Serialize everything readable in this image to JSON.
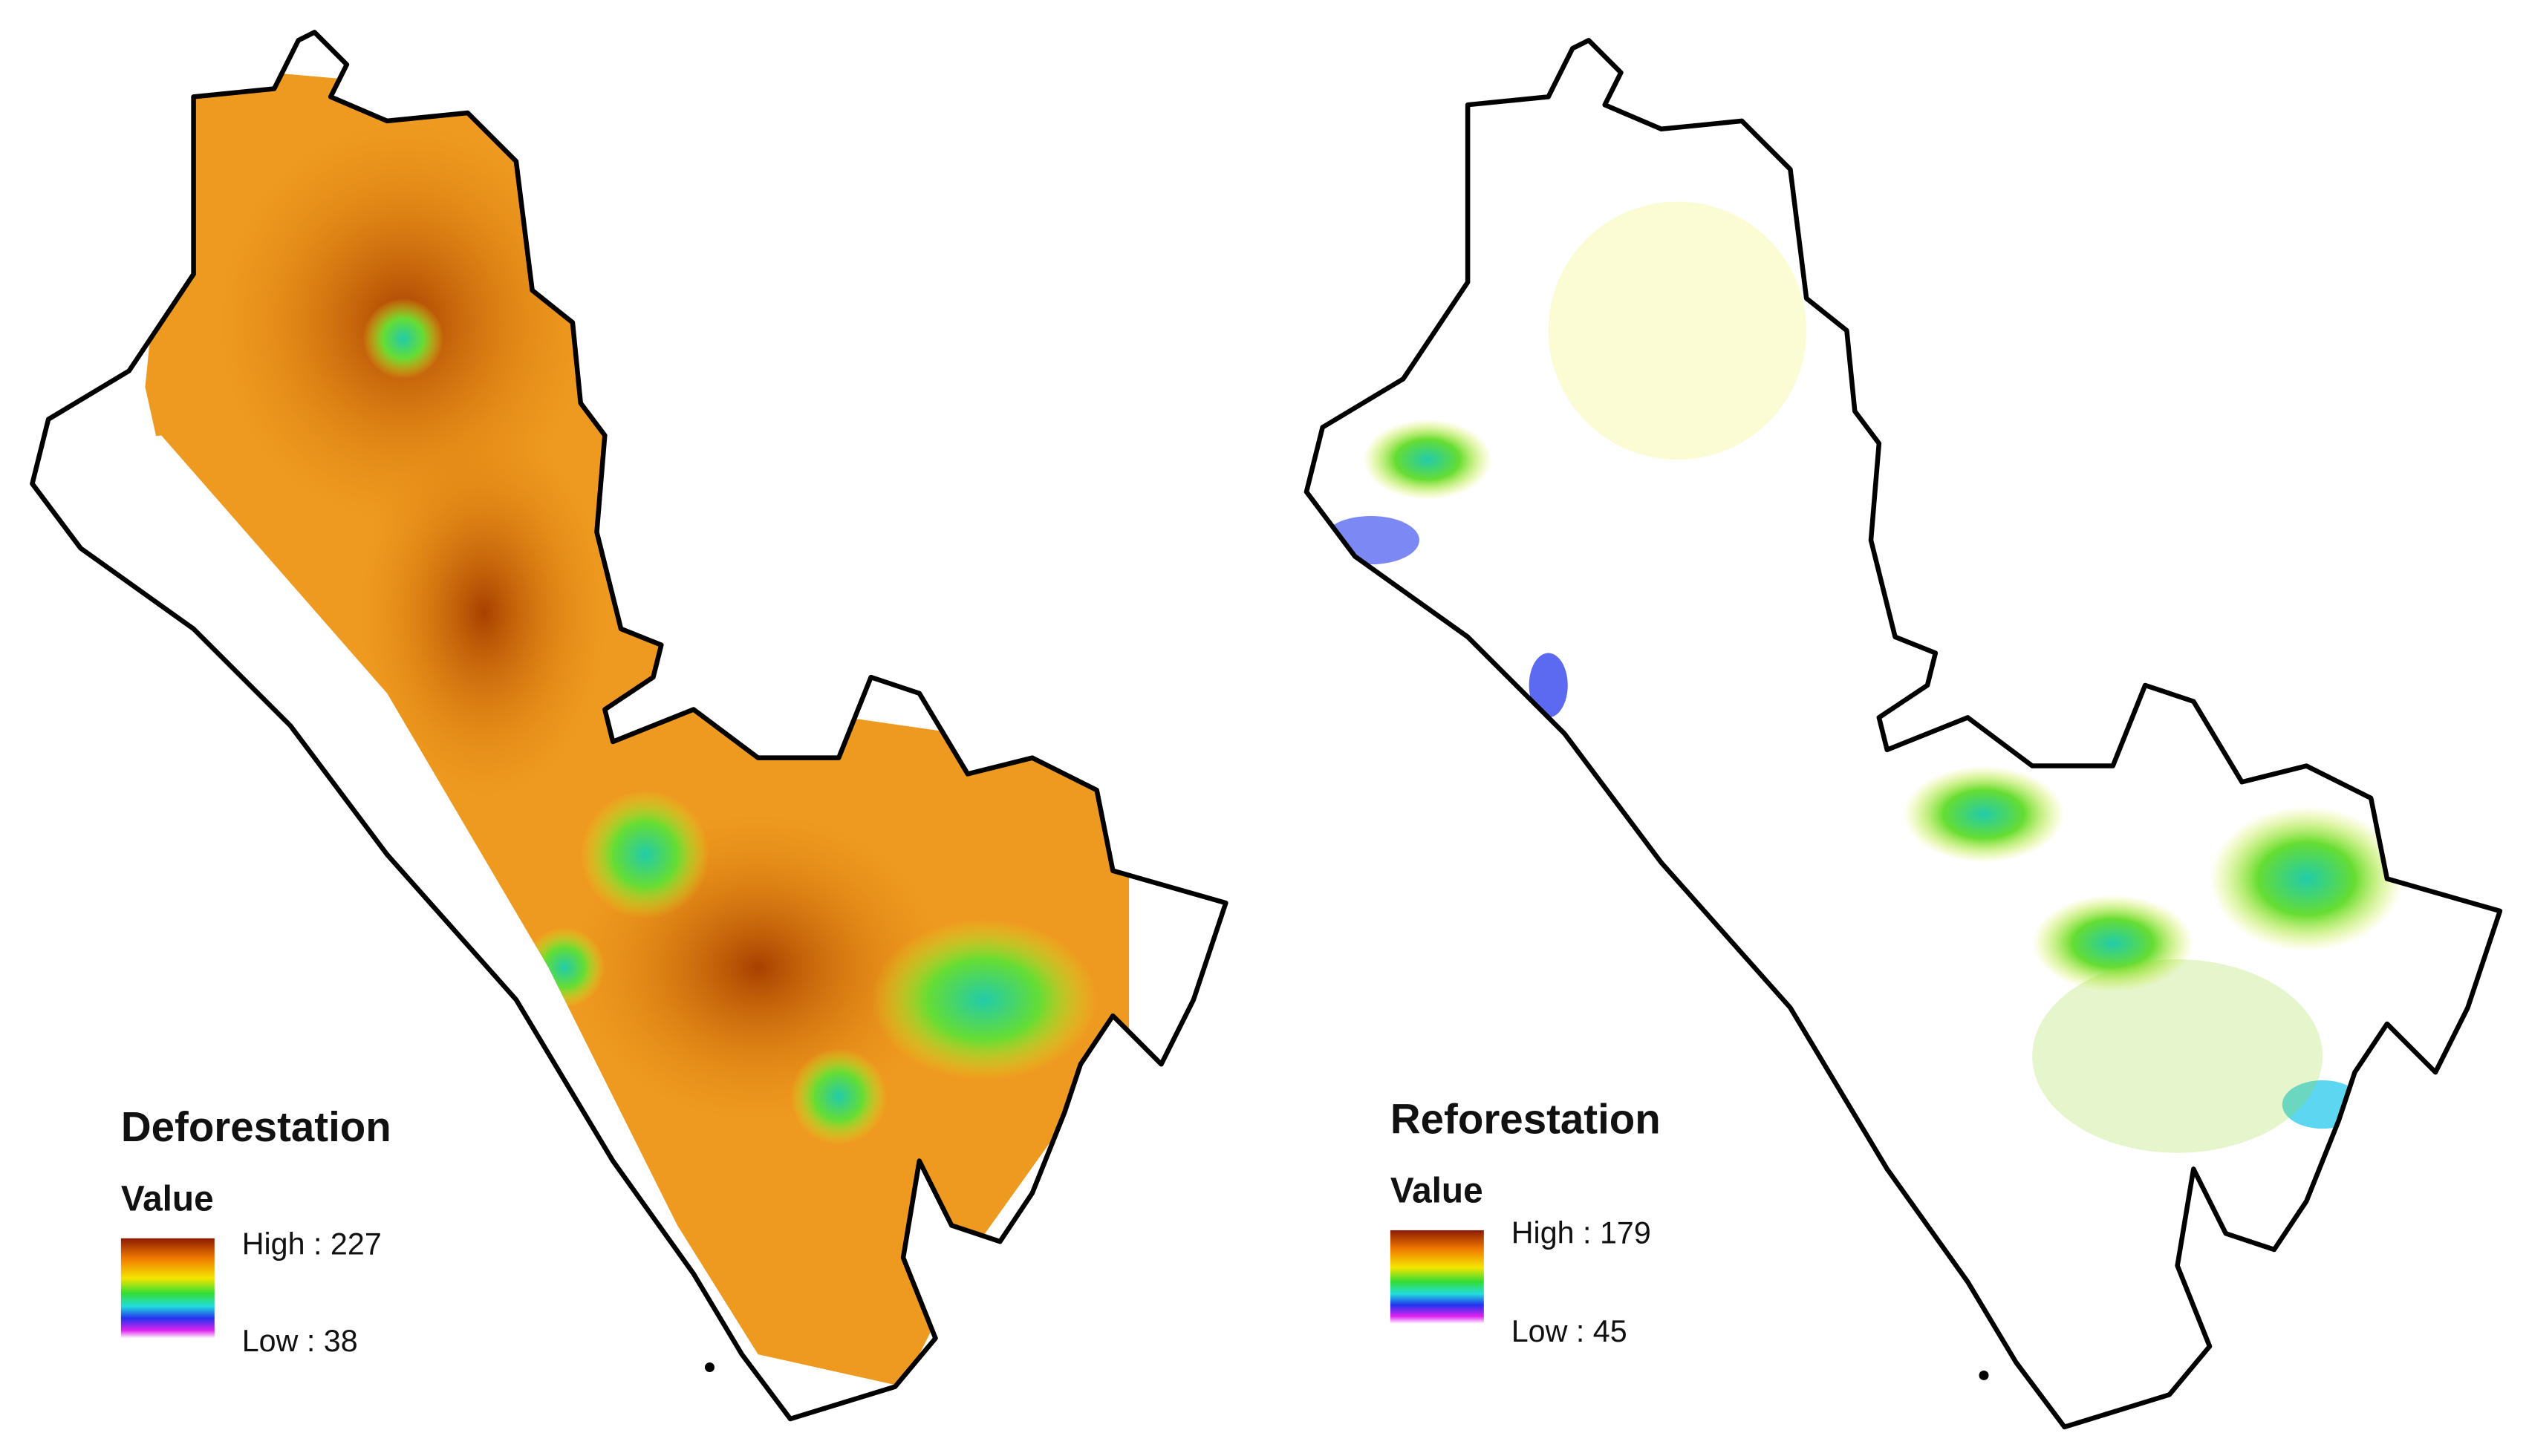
{
  "maps": [
    {
      "title": "Deforestation",
      "legend": {
        "heading": "Value",
        "high": "High : 227",
        "low": "Low : 38"
      }
    },
    {
      "title": "Reforestation",
      "legend": {
        "heading": "Value",
        "high": "High : 179",
        "low": "Low : 45"
      }
    }
  ]
}
